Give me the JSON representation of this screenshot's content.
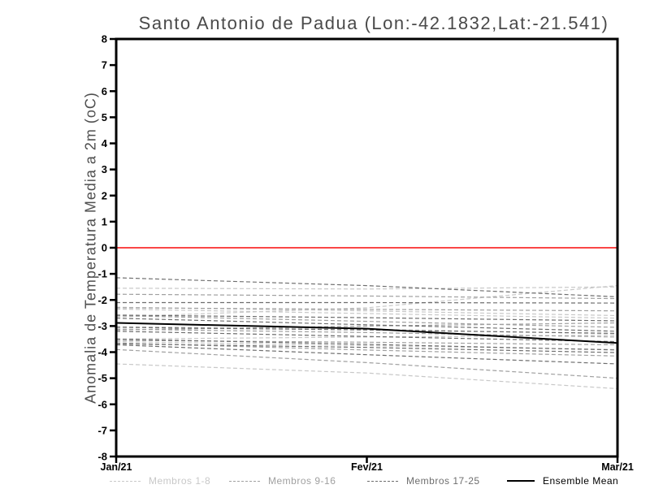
{
  "title": "Santo Antonio de Padua (Lon:-42.1832,Lat:-21.541)",
  "chart_data": {
    "type": "line",
    "title": "Santo Antonio de Padua (Lon:-42.1832,Lat:-21.541)",
    "xlabel": "",
    "ylabel": "Anomalia de Temperatura Media a 2m (oC)",
    "x_categories": [
      "Jan/21",
      "Fev/21",
      "Mar/21"
    ],
    "ylim": [
      -8,
      8
    ],
    "y_ticks": [
      "8",
      "7",
      "6",
      "5",
      "4",
      "3",
      "2",
      "1",
      "0",
      "-1",
      "-2",
      "-3",
      "-4",
      "-5",
      "-6",
      "-7",
      "-8"
    ],
    "grid": false,
    "legend_position": "bottom",
    "zero_line": {
      "value": 0,
      "color": "#fa4646"
    },
    "frame_color": "#000000",
    "series": [
      {
        "name": "Membros 1-8",
        "color": "#c8c8c8",
        "line_style": "dashed",
        "members": [
          [
            -1.55,
            -1.58,
            -1.5
          ],
          [
            -2.28,
            -2.42,
            -2.6
          ],
          [
            -2.65,
            -2.3,
            -1.45
          ],
          [
            -3.02,
            -3.12,
            -3.3
          ],
          [
            -3.5,
            -3.42,
            -3.35
          ],
          [
            -3.6,
            -3.75,
            -3.9
          ],
          [
            -4.45,
            -4.8,
            -5.4
          ],
          [
            -2.35,
            -2.52,
            -2.7
          ]
        ]
      },
      {
        "name": "Membros 9-16",
        "color": "#a0a0a0",
        "line_style": "dashed",
        "members": [
          [
            -1.78,
            -1.85,
            -1.95
          ],
          [
            -2.3,
            -2.36,
            -2.42
          ],
          [
            -2.6,
            -2.82,
            -3.05
          ],
          [
            -3.12,
            -3.25,
            -3.42
          ],
          [
            -3.55,
            -3.62,
            -3.72
          ],
          [
            -3.65,
            -3.92,
            -4.15
          ],
          [
            -3.9,
            -4.4,
            -5.0
          ],
          [
            -3.15,
            -3.0,
            -2.88
          ]
        ]
      },
      {
        "name": "Membros 17-25",
        "color": "#6e6e6e",
        "line_style": "dashed",
        "members": [
          [
            -1.15,
            -1.45,
            -1.88
          ],
          [
            -2.1,
            -2.1,
            -2.12
          ],
          [
            -2.58,
            -2.68,
            -2.8
          ],
          [
            -2.7,
            -2.95,
            -3.2
          ],
          [
            -3.05,
            -3.15,
            -3.28
          ],
          [
            -3.2,
            -3.4,
            -3.6
          ],
          [
            -3.5,
            -3.7,
            -3.92
          ],
          [
            -3.68,
            -3.82,
            -4.02
          ],
          [
            -3.72,
            -4.1,
            -4.45
          ]
        ]
      },
      {
        "name": "Ensemble Mean",
        "color": "#000000",
        "line_style": "solid",
        "members": [
          [
            -2.88,
            -3.1,
            -3.65
          ]
        ]
      }
    ]
  }
}
